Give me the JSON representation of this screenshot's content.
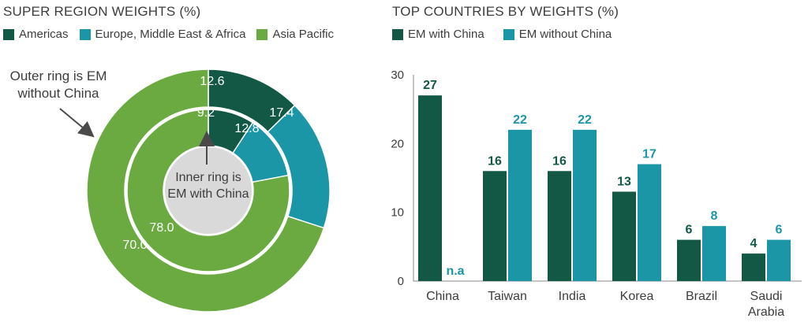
{
  "colors": {
    "americas": "#125844",
    "emea": "#1a96a6",
    "asia": "#6aaa41",
    "em_with_china": "#125844",
    "em_without_china": "#1a96a6",
    "center": "#d9d9d9",
    "text_dark": "#3d3d3d"
  },
  "left_panel": {
    "title": "SUPER REGION WEIGHTS (%)",
    "legend": [
      {
        "label": "Americas",
        "color": "#125844"
      },
      {
        "label": "Europe, Middle East & Africa",
        "color": "#1a96a6"
      },
      {
        "label": "Asia Pacific",
        "color": "#6aaa41"
      }
    ],
    "outer_note": [
      "Outer ring is EM",
      "without China"
    ],
    "inner_note": [
      "Inner ring is",
      "EM with China"
    ]
  },
  "right_panel": {
    "title": "TOP COUNTRIES BY WEIGHTS (%)",
    "legend": [
      {
        "label": "EM with China",
        "color": "#125844"
      },
      {
        "label": "EM without China",
        "color": "#1a96a6"
      }
    ]
  },
  "chart_data": [
    {
      "type": "pie",
      "title": "SUPER REGION WEIGHTS (%)",
      "categories": [
        "Americas",
        "Europe, Middle East & Africa",
        "Asia Pacific"
      ],
      "series": [
        {
          "name": "EM without China",
          "ring": "outer",
          "values": [
            12.6,
            17.4,
            70.0
          ],
          "labels": [
            "12.6",
            "17.4",
            "70.0"
          ]
        },
        {
          "name": "EM with China",
          "ring": "inner",
          "values": [
            9.2,
            12.8,
            78.0
          ],
          "labels": [
            "9.2",
            "12.8",
            "78.0"
          ]
        }
      ]
    },
    {
      "type": "bar",
      "title": "TOP COUNTRIES BY WEIGHTS (%)",
      "categories": [
        [
          "China"
        ],
        [
          "Taiwan"
        ],
        [
          "India"
        ],
        [
          "Korea"
        ],
        [
          "Brazil"
        ],
        [
          "Saudi",
          "Arabia"
        ]
      ],
      "series": [
        {
          "name": "EM with China",
          "values": [
            27,
            16,
            16,
            13,
            6,
            4
          ],
          "labels": [
            "27",
            "16",
            "16",
            "13",
            "6",
            "4"
          ]
        },
        {
          "name": "EM without China",
          "values": [
            null,
            22,
            22,
            17,
            8,
            6
          ],
          "labels": [
            "n.a",
            "22",
            "22",
            "17",
            "8",
            "6"
          ]
        }
      ],
      "yticks": [
        "0",
        "10",
        "20",
        "30"
      ],
      "ylim": [
        0,
        30
      ]
    }
  ]
}
